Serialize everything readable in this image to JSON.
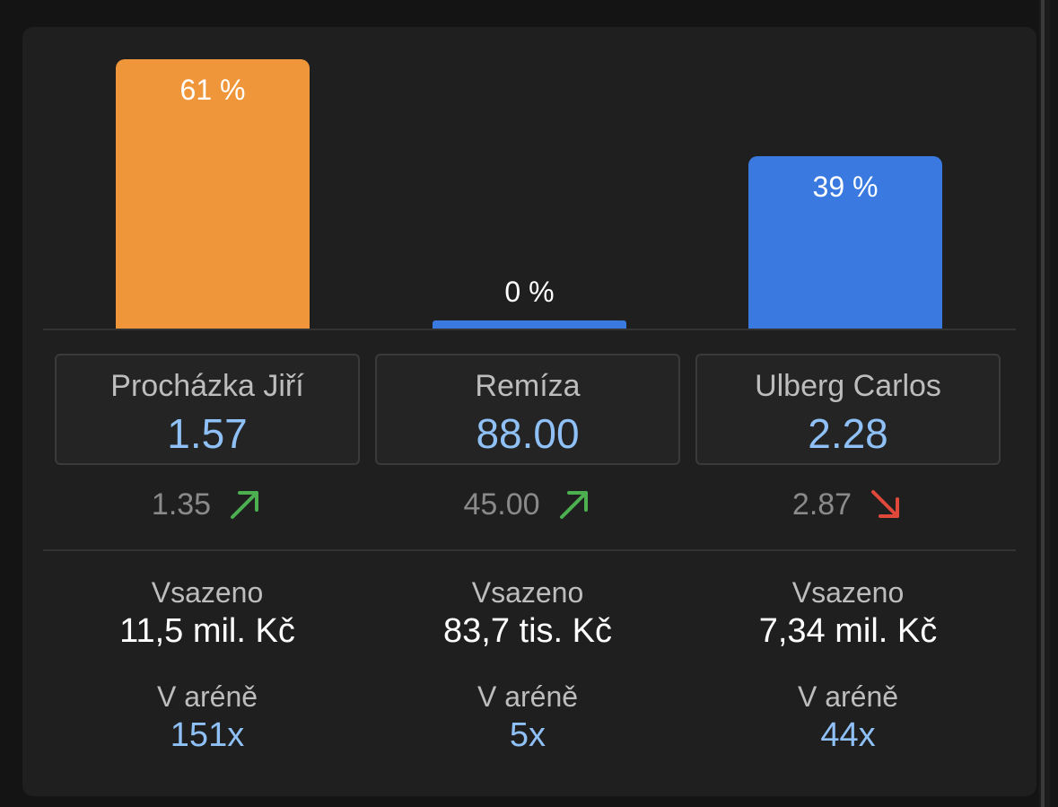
{
  "chart_data": {
    "type": "bar",
    "categories": [
      "Procházka Jiří",
      "Remíza",
      "Ulberg Carlos"
    ],
    "values": [
      61,
      0,
      39
    ],
    "value_labels": [
      "61 %",
      "0 %",
      "39 %"
    ],
    "colors": [
      "#f0963a",
      "#3a7ae0",
      "#3a7ae0"
    ],
    "ylim": [
      0,
      61
    ]
  },
  "outcomes": [
    {
      "name": "Procházka Jiří",
      "odds": "1.57",
      "previous_odds": "1.35",
      "trend": "up",
      "staked_label": "Vsazeno",
      "staked_value": "11,5 mil. Kč",
      "arena_label": "V aréně",
      "arena_count": "151x"
    },
    {
      "name": "Remíza",
      "odds": "88.00",
      "previous_odds": "45.00",
      "trend": "up",
      "staked_label": "Vsazeno",
      "staked_value": "83,7 tis. Kč",
      "arena_label": "V aréně",
      "arena_count": "5x"
    },
    {
      "name": "Ulberg Carlos",
      "odds": "2.28",
      "previous_odds": "2.87",
      "trend": "down",
      "staked_label": "Vsazeno",
      "staked_value": "7,34 mil. Kč",
      "arena_label": "V aréně",
      "arena_count": "44x"
    }
  ],
  "trend_colors": {
    "up": "#4caf50",
    "down": "#e0483a"
  }
}
